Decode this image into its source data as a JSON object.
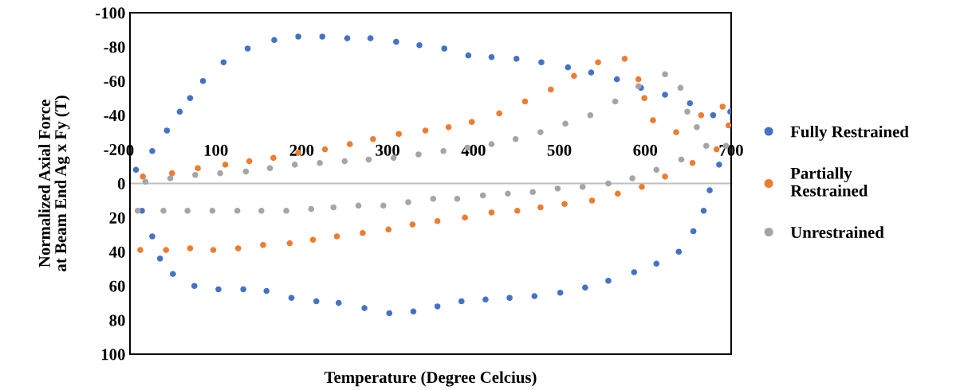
{
  "chart_data": {
    "type": "scatter",
    "xlabel": "Temperature (Degree Celcius)",
    "ylabel": "Normalized Axial Force at Beam End Ag x Fy (T)",
    "xlim": [
      0,
      700
    ],
    "xticks": [
      0,
      100,
      200,
      300,
      400,
      500,
      600,
      700
    ],
    "ylim": [
      100,
      -100
    ],
    "yticks": [
      -100,
      -80,
      -60,
      -40,
      -20,
      0,
      20,
      40,
      60,
      80,
      100
    ],
    "grid": false,
    "legend": "right",
    "marker": "circle",
    "series": [
      {
        "name": "Fully Restrained",
        "color": "#4472c4",
        "x": [
          7,
          26,
          43,
          58,
          70,
          85,
          109,
          137,
          168,
          196,
          224,
          253,
          280,
          310,
          337,
          366,
          394,
          421,
          450,
          479,
          510,
          537,
          567,
          595,
          623,
          652,
          679,
          699,
          686,
          675,
          668,
          656,
          639,
          613,
          587,
          557,
          530,
          501,
          471,
          442,
          414,
          386,
          358,
          330,
          302,
          273,
          243,
          217,
          188,
          159,
          132,
          103,
          75,
          50,
          35,
          26,
          14
        ],
        "values": [
          -8,
          -19,
          -31,
          -42,
          -50,
          -60,
          -71,
          -79,
          -84,
          -86,
          -86,
          -85,
          -85,
          -83,
          -81,
          -79,
          -75,
          -74,
          -73,
          -71,
          -68,
          -65,
          -61,
          -56,
          -52,
          -47,
          -40,
          -42,
          -11,
          4,
          16,
          28,
          40,
          47,
          52,
          57,
          61,
          64,
          66,
          67,
          68,
          69,
          72,
          75,
          76,
          73,
          70,
          69,
          67,
          63,
          62,
          62,
          60,
          53,
          44,
          31,
          16
        ]
      },
      {
        "name": "Partially Restrained",
        "color": "#ed7d31",
        "x": [
          15,
          49,
          79,
          111,
          139,
          167,
          196,
          227,
          256,
          283,
          313,
          344,
          371,
          398,
          430,
          460,
          490,
          517,
          545,
          576,
          592,
          599,
          609,
          636,
          665,
          690,
          697,
          683,
          655,
          623,
          596,
          568,
          538,
          506,
          478,
          451,
          421,
          390,
          358,
          329,
          301,
          271,
          241,
          213,
          186,
          155,
          126,
          97,
          70,
          42,
          12
        ],
        "values": [
          -4,
          -6,
          -9,
          -11,
          -13,
          -15,
          -18,
          -20,
          -23,
          -26,
          -29,
          -31,
          -33,
          -36,
          -41,
          -48,
          -55,
          -63,
          -71,
          -73,
          -61,
          -50,
          -37,
          -30,
          -40,
          -45,
          -34,
          -20,
          -12,
          -4,
          2,
          6,
          10,
          12,
          14,
          16,
          17,
          20,
          22,
          24,
          27,
          29,
          31,
          33,
          35,
          36,
          38,
          39,
          38,
          39,
          39
        ]
      },
      {
        "name": "Unrestrained",
        "color": "#a5a5a5",
        "x": [
          18,
          47,
          76,
          105,
          135,
          163,
          192,
          221,
          250,
          278,
          307,
          336,
          365,
          393,
          421,
          449,
          478,
          507,
          536,
          565,
          592,
          623,
          641,
          649,
          660,
          671,
          694,
          642,
          613,
          585,
          557,
          527,
          498,
          469,
          440,
          411,
          381,
          353,
          324,
          295,
          266,
          237,
          211,
          182,
          153,
          125,
          96,
          67,
          39,
          9
        ],
        "values": [
          -1,
          -3,
          -5,
          -6,
          -7,
          -9,
          -11,
          -12,
          -13,
          -14,
          -15,
          -17,
          -19,
          -21,
          -23,
          -26,
          -30,
          -35,
          -40,
          -48,
          -57,
          -64,
          -56,
          -42,
          -33,
          -22,
          -22,
          -14,
          -8,
          -3,
          0,
          2,
          3,
          5,
          6,
          7,
          9,
          9,
          11,
          13,
          13,
          14,
          15,
          16,
          16,
          16,
          16,
          16,
          16,
          16
        ]
      }
    ]
  }
}
